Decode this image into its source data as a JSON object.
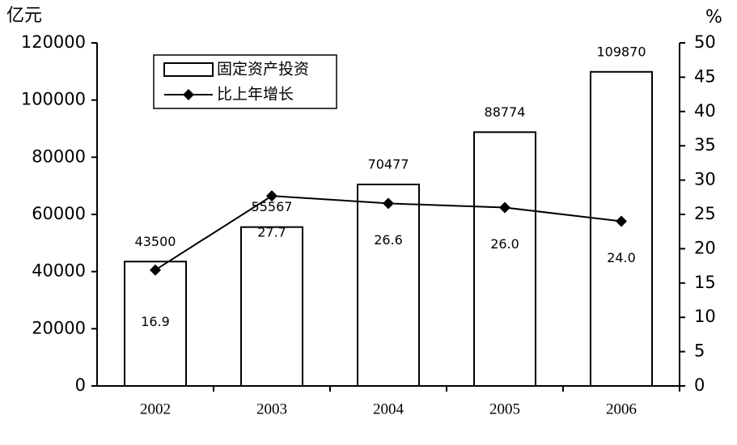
{
  "chart_data": {
    "type": "bar",
    "y_label": "亿元",
    "y2_label": "%",
    "categories": [
      "2002",
      "2003",
      "2004",
      "2005",
      "2006"
    ],
    "series": [
      {
        "name": "固定资产投资",
        "type": "bar",
        "color": "#ffffff",
        "values": [
          43500,
          55567,
          70477,
          88774,
          109870
        ]
      },
      {
        "name": "比上年增长",
        "type": "line",
        "axis": "y2",
        "color": "#000000",
        "values": [
          16.9,
          27.7,
          26.6,
          26.0,
          24.0
        ],
        "value_labels": [
          "16.9",
          "27.7",
          "26.6",
          "26.0",
          "24.0"
        ]
      }
    ],
    "ylim": [
      0,
      120000
    ],
    "yticks": [
      0,
      20000,
      40000,
      60000,
      80000,
      100000,
      120000
    ],
    "y2lim": [
      0,
      50
    ],
    "y2ticks": [
      0,
      5,
      10,
      15,
      20,
      25,
      30,
      35,
      40,
      45,
      50
    ],
    "grid": false,
    "legend": "top-left"
  }
}
